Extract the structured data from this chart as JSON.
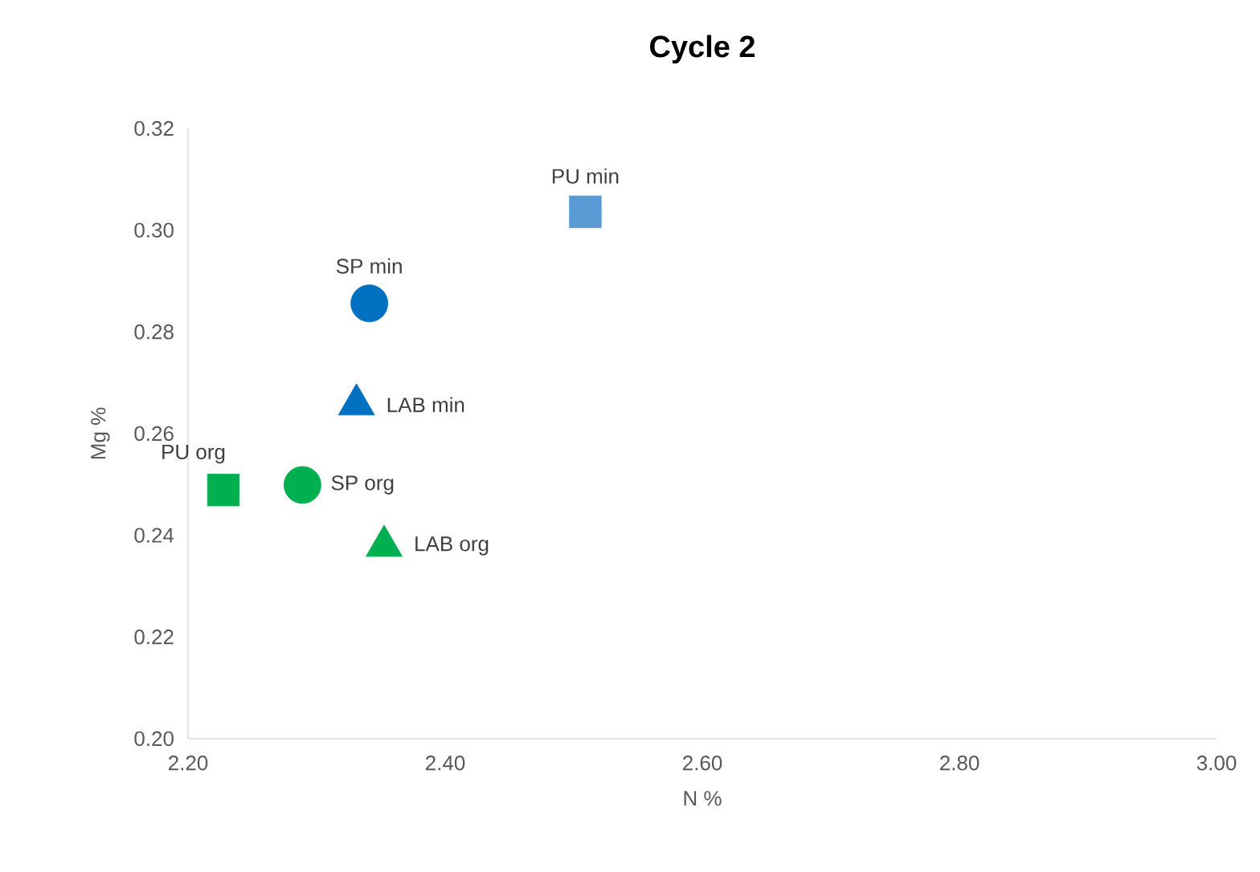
{
  "chart_data": {
    "type": "scatter",
    "title": "Cycle 2",
    "xlabel": "N %",
    "ylabel": "Mg %",
    "xlim": [
      2.2,
      3.0
    ],
    "ylim": [
      0.2,
      0.32
    ],
    "xticks": [
      {
        "value": 2.2,
        "label": "2.20"
      },
      {
        "value": 2.4,
        "label": "2.40"
      },
      {
        "value": 2.6,
        "label": "2.60"
      },
      {
        "value": 2.8,
        "label": "2.80"
      },
      {
        "value": 3.0,
        "label": "3.00"
      }
    ],
    "yticks": [
      {
        "value": 0.2,
        "label": "0.20"
      },
      {
        "value": 0.22,
        "label": "0.22"
      },
      {
        "value": 0.24,
        "label": "0.24"
      },
      {
        "value": 0.26,
        "label": "0.26"
      },
      {
        "value": 0.28,
        "label": "0.28"
      },
      {
        "value": 0.3,
        "label": "0.30"
      },
      {
        "value": 0.32,
        "label": "0.32"
      }
    ],
    "grid": false,
    "series": [
      {
        "name": "PU min",
        "color": "#5b9bd5",
        "marker": "square",
        "x": [
          2.509
        ],
        "values": [
          0.3036
        ]
      },
      {
        "name": "SP min",
        "color": "#0070c0",
        "marker": "circle",
        "x": [
          2.341
        ],
        "values": [
          0.2856
        ]
      },
      {
        "name": "LAB min",
        "color": "#0070c0",
        "marker": "triangle",
        "x": [
          2.331
        ],
        "values": [
          0.2657
        ]
      },
      {
        "name": "PU org",
        "color": "#00b050",
        "marker": "square",
        "x": [
          2.2275
        ],
        "values": [
          0.2489
        ]
      },
      {
        "name": "SP org",
        "color": "#00b050",
        "marker": "circle",
        "x": [
          2.289
        ],
        "values": [
          0.2499
        ]
      },
      {
        "name": "LAB org",
        "color": "#00b050",
        "marker": "triangle",
        "x": [
          2.3525
        ],
        "values": [
          0.2379
        ]
      }
    ]
  }
}
